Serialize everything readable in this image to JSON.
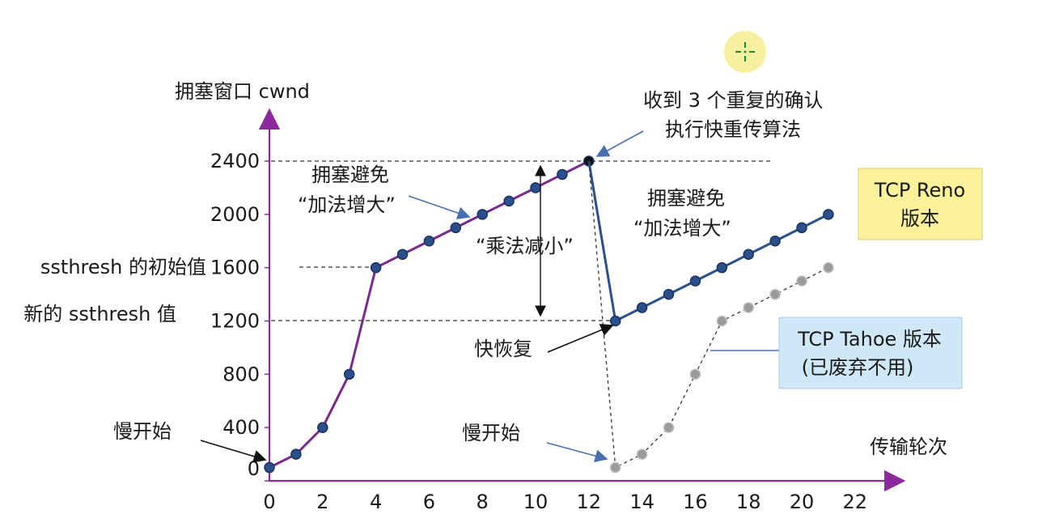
{
  "chart_data": {
    "type": "line",
    "ylabel": "拥塞窗口 cwnd",
    "xlabel": "传输轮次",
    "xlim": [
      0,
      23
    ],
    "ylim": [
      0,
      2800
    ],
    "x_ticks": [
      "0",
      "2",
      "4",
      "6",
      "8",
      "10",
      "12",
      "14",
      "16",
      "18",
      "20",
      "22"
    ],
    "y_ticks": [
      {
        "value": 0,
        "label": "0"
      },
      {
        "value": 400,
        "label": "400"
      },
      {
        "value": 800,
        "label": "800"
      },
      {
        "value": 1200,
        "label": "1200"
      },
      {
        "value": 1600,
        "label": "1600"
      },
      {
        "value": 2000,
        "label": "2000"
      },
      {
        "value": 2400,
        "label": "2400"
      }
    ],
    "series": [
      {
        "color": "#7a2a8c",
        "x": [
          0,
          1,
          2,
          3,
          4,
          5,
          6,
          7,
          8,
          9,
          10,
          11,
          12
        ],
        "y": [
          100,
          200,
          400,
          800,
          1600,
          1700,
          1800,
          1900,
          2000,
          2100,
          2200,
          2300,
          2400
        ]
      },
      {
        "name": "TCP Reno 版本",
        "color": "#2a4f8a",
        "x": [
          12,
          13,
          14,
          15,
          16,
          17,
          18,
          19,
          20,
          21
        ],
        "y": [
          2400,
          1200,
          1300,
          1400,
          1500,
          1600,
          1700,
          1800,
          1900,
          2000
        ]
      },
      {
        "name": "TCP Tahoe 版本 (已废弃不用)",
        "color": "#8a8a8a",
        "dashed": true,
        "x": [
          12,
          13,
          14,
          15,
          16,
          17,
          18,
          19,
          20,
          21
        ],
        "y": [
          2400,
          100,
          200,
          400,
          800,
          1200,
          1300,
          1400,
          1500,
          1600
        ]
      }
    ],
    "reference_lines": [
      {
        "y": 2400,
        "label": "2400"
      },
      {
        "y": 1600,
        "label": "ssthresh 的初始值"
      },
      {
        "y": 1200,
        "label": "新的 ssthresh 值"
      }
    ],
    "annotations": {
      "slow_start_1": "慢开始",
      "slow_start_2": "慢开始",
      "cong_avoid_1_line1": "拥塞避免",
      "cong_avoid_1_line2": "“加法增大”",
      "cong_avoid_2_line1": "拥塞避免",
      "cong_avoid_2_line2": "“加法增大”",
      "mult_decrease": "“乘法减小”",
      "fast_recovery": "快恢复",
      "dup_ack_line1": "收到 3 个重复的确认",
      "dup_ack_line2": "执行快重传算法",
      "ssthresh_init": "ssthresh 的初始值",
      "ssthresh_new": "新的 ssthresh 值"
    },
    "legend_boxes": {
      "reno_line1": "TCP Reno",
      "reno_line2": "版本",
      "tahoe_line1": "TCP Tahoe 版本",
      "tahoe_line2": "(已废弃不用)"
    },
    "grid": false
  },
  "colors": {
    "axis": "#8a2a9c",
    "reno_box": "#fbf19a",
    "tahoe_box": "#cfe8f7",
    "cursor_circle": "#f6f0a0",
    "cursor_cross": "#1f8a2a"
  },
  "cursor_icon": "crosshair-icon"
}
